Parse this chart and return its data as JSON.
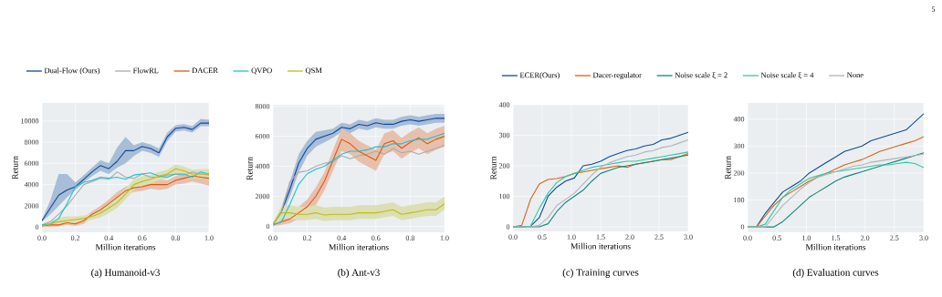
{
  "chart_data": [
    {
      "type": "line",
      "xlabel": "Million iterations",
      "ylabel": "Return",
      "annotations": [
        "(a) Humanoid-v3"
      ],
      "legend": "top",
      "grid": true,
      "xlim": [
        0,
        1
      ],
      "ylim": [
        -500,
        11700
      ],
      "xticks": [
        {
          "value": 0,
          "label": "0.0"
        },
        {
          "value": 0.2,
          "label": "0.2"
        },
        {
          "value": 0.4,
          "label": "0.4"
        },
        {
          "value": 0.6,
          "label": "0.6"
        },
        {
          "value": 0.8,
          "label": "0.8"
        },
        {
          "value": 1,
          "label": "1.0"
        }
      ],
      "yticks": [
        0,
        2000,
        4000,
        6000,
        8000,
        10000
      ],
      "x": [
        0,
        0.05,
        0.1,
        0.15,
        0.2,
        0.25,
        0.3,
        0.35,
        0.4,
        0.45,
        0.5,
        0.55,
        0.6,
        0.65,
        0.7,
        0.75,
        0.8,
        0.85,
        0.9,
        0.95,
        1.0
      ],
      "series": [
        {
          "name": "Dual-Flow (Ours)",
          "color": "#0d4a9c",
          "values": [
            600,
            1800,
            3000,
            3500,
            3800,
            4500,
            5200,
            5800,
            5500,
            6200,
            7200,
            7200,
            7600,
            7400,
            7000,
            8500,
            9300,
            9400,
            9200,
            9800,
            9800
          ],
          "lower": [
            500,
            1200,
            2000,
            2800,
            3500,
            4200,
            4800,
            5300,
            5000,
            5600,
            6000,
            6700,
            7200,
            7000,
            6600,
            8100,
            9000,
            9100,
            8900,
            9500,
            9500
          ],
          "upper": [
            700,
            2500,
            5000,
            5000,
            4200,
            4900,
            5600,
            6300,
            6000,
            7500,
            8500,
            7700,
            8000,
            7800,
            7400,
            8900,
            9600,
            9700,
            9500,
            10200,
            10100
          ]
        },
        {
          "name": "FlowRL",
          "color": "#aaaaaa",
          "values": [
            200,
            500,
            1200,
            2000,
            3000,
            4000,
            4300,
            4600,
            4500,
            5200,
            4700,
            4600,
            5000,
            4700,
            4700,
            4900,
            5000,
            4900,
            5200,
            5000,
            4900
          ]
        },
        {
          "name": "DACER",
          "color": "#e1550e",
          "values": [
            100,
            200,
            200,
            400,
            300,
            600,
            1200,
            1600,
            2200,
            2800,
            3400,
            3700,
            3800,
            4000,
            4000,
            4000,
            4400,
            4600,
            4800,
            4700,
            4600
          ],
          "lower": [
            0,
            0,
            50,
            200,
            100,
            300,
            900,
            1200,
            1800,
            2300,
            3000,
            3300,
            3400,
            3600,
            3500,
            3600,
            4000,
            4100,
            4300,
            null,
            3900
          ],
          "upper": [
            200,
            300,
            400,
            600,
            500,
            900,
            1500,
            2000,
            2600,
            3300,
            3800,
            4100,
            4300,
            4400,
            4500,
            4400,
            4800,
            5100,
            5300,
            null,
            5300
          ]
        },
        {
          "name": "QVPO",
          "color": "#1fc0d6",
          "values": [
            200,
            300,
            800,
            2200,
            3800,
            4200,
            4400,
            4700,
            4600,
            4700,
            4500,
            4900,
            5000,
            5100,
            4800,
            4700,
            5000,
            5000,
            4700,
            5200,
            5000
          ]
        },
        {
          "name": "QSM",
          "color": "#bcbc1e",
          "values": [
            100,
            300,
            500,
            600,
            700,
            800,
            1000,
            1300,
            1800,
            2300,
            3100,
            4000,
            4300,
            4500,
            4800,
            5000,
            5500,
            5300,
            5000,
            5000,
            5000
          ],
          "lower": [
            0,
            100,
            200,
            300,
            400,
            500,
            700,
            900,
            1300,
            1800,
            2600,
            3500,
            3900,
            4100,
            4400,
            4600,
            5100,
            4900,
            4600,
            null,
            4600
          ],
          "upper": [
            200,
            500,
            900,
            1000,
            1000,
            1100,
            1300,
            1700,
            2300,
            2800,
            3600,
            4500,
            4800,
            4900,
            5200,
            5400,
            5900,
            5700,
            5400,
            null,
            5500
          ]
        }
      ]
    },
    {
      "type": "line",
      "xlabel": "Million iterations",
      "ylabel": "Return",
      "annotations": [
        "(b) Ant-v3"
      ],
      "grid": true,
      "xlim": [
        0,
        1
      ],
      "ylim": [
        -400,
        8100
      ],
      "xticks": [
        {
          "value": 0,
          "label": "0.0"
        },
        {
          "value": 0.2,
          "label": "0.2"
        },
        {
          "value": 0.4,
          "label": "0.4"
        },
        {
          "value": 0.6,
          "label": "0.6"
        },
        {
          "value": 0.8,
          "label": "0.8"
        },
        {
          "value": 1,
          "label": "1.0"
        }
      ],
      "yticks": [
        0,
        2000,
        4000,
        6000,
        8000
      ],
      "x": [
        0,
        0.05,
        0.1,
        0.15,
        0.2,
        0.25,
        0.3,
        0.35,
        0.4,
        0.45,
        0.5,
        0.55,
        0.6,
        0.65,
        0.7,
        0.75,
        0.8,
        0.85,
        0.9,
        0.95,
        1.0
      ],
      "series": [
        {
          "color": "#0d4a9c",
          "values": [
            100,
            1000,
            2500,
            4200,
            5200,
            5800,
            6000,
            6200,
            6600,
            6500,
            6800,
            6700,
            6900,
            6800,
            6800,
            7000,
            7100,
            7000,
            7100,
            7200,
            7200
          ],
          "lower": [
            0,
            700,
            2000,
            3600,
            4700,
            5300,
            5600,
            5900,
            6300,
            6200,
            6500,
            6400,
            6600,
            6500,
            6500,
            6700,
            6800,
            6700,
            6800,
            6900,
            6900
          ],
          "upper": [
            200,
            1300,
            3000,
            4800,
            5700,
            6300,
            6400,
            6500,
            6900,
            6800,
            7100,
            7000,
            7200,
            7100,
            7100,
            7300,
            7400,
            7300,
            7400,
            7500,
            7500
          ]
        },
        {
          "color": "#aaaaaa",
          "values": [
            100,
            1000,
            3000,
            3600,
            3700,
            4000,
            4200,
            4300,
            4700,
            4500,
            4700,
            4800,
            5000,
            4800,
            5200,
            4900,
            5000,
            4800,
            5000,
            5200,
            5400
          ]
        },
        {
          "color": "#e1550e",
          "values": [
            100,
            300,
            500,
            900,
            1300,
            2000,
            3000,
            4400,
            5800,
            5500,
            5000,
            4700,
            4400,
            5500,
            5700,
            5200,
            5600,
            5900,
            5500,
            5800,
            6000
          ],
          "lower": [
            0,
            100,
            200,
            500,
            800,
            1400,
            2400,
            3700,
            5000,
            4800,
            4300,
            4000,
            3700,
            4800,
            5000,
            4500,
            4900,
            5200,
            4800,
            5100,
            5300
          ],
          "upper": [
            300,
            500,
            800,
            1300,
            1800,
            2600,
            3600,
            5100,
            6500,
            6200,
            5700,
            5400,
            5100,
            6200,
            6400,
            5900,
            6300,
            6600,
            6200,
            6500,
            6700
          ]
        },
        {
          "color": "#1fc0d6",
          "values": [
            100,
            300,
            1500,
            2800,
            3500,
            3800,
            4000,
            4400,
            4800,
            5000,
            5000,
            5100,
            5300,
            5300,
            5500,
            5500,
            5700,
            5800,
            5800,
            6000,
            6200
          ]
        },
        {
          "color": "#bcbc1e",
          "values": [
            100,
            900,
            900,
            800,
            800,
            900,
            750,
            800,
            800,
            800,
            900,
            900,
            900,
            1000,
            1100,
            800,
            900,
            1000,
            1100,
            1100,
            1500
          ],
          "lower": [
            0,
            500,
            500,
            400,
            400,
            500,
            350,
            400,
            400,
            400,
            500,
            500,
            500,
            600,
            700,
            400,
            500,
            600,
            700,
            700,
            1100
          ],
          "upper": [
            200,
            1400,
            1400,
            1300,
            1300,
            1400,
            1250,
            1300,
            1300,
            1300,
            1400,
            1400,
            1400,
            1500,
            1600,
            1300,
            1400,
            1500,
            1600,
            1600,
            2000
          ]
        }
      ]
    },
    {
      "type": "line",
      "xlabel": "Million iterations",
      "ylabel": "Return",
      "annotations": [
        "(c) Training curves"
      ],
      "legend": "top",
      "grid": true,
      "xlim": [
        0,
        3
      ],
      "ylim": [
        -15,
        400
      ],
      "xticks": [
        {
          "value": 0,
          "label": "0.0"
        },
        {
          "value": 0.5,
          "label": "0.5"
        },
        {
          "value": 1,
          "label": "1.0"
        },
        {
          "value": 1.5,
          "label": "1.5"
        },
        {
          "value": 2,
          "label": "2.0"
        },
        {
          "value": 2.5,
          "label": "2.5"
        },
        {
          "value": 3,
          "label": "3.0"
        }
      ],
      "yticks": [
        0,
        100,
        200,
        300,
        400
      ],
      "x": [
        0,
        0.15,
        0.3,
        0.45,
        0.6,
        0.75,
        0.9,
        1.05,
        1.2,
        1.35,
        1.5,
        1.65,
        1.8,
        1.95,
        2.1,
        2.25,
        2.4,
        2.55,
        2.7,
        2.85,
        3.0
      ],
      "series": [
        {
          "name": "ECER(Ours)",
          "color": "#0b4c9b",
          "values": [
            0,
            0,
            2,
            30,
            100,
            130,
            150,
            160,
            200,
            205,
            215,
            230,
            240,
            250,
            255,
            265,
            270,
            285,
            290,
            300,
            310
          ]
        },
        {
          "name": "Dacer-regulator",
          "color": "#e0600f",
          "values": [
            0,
            5,
            90,
            140,
            155,
            158,
            165,
            175,
            180,
            185,
            190,
            195,
            200,
            195,
            205,
            210,
            215,
            220,
            220,
            230,
            240
          ]
        },
        {
          "name": "Noise scale ξ = 2",
          "color": "#12877c",
          "values": [
            0,
            0,
            0,
            0,
            10,
            50,
            80,
            100,
            120,
            150,
            175,
            185,
            195,
            200,
            205,
            210,
            215,
            220,
            225,
            230,
            235
          ]
        },
        {
          "name": "Noise scale ξ = 4",
          "color": "#2ec9a3",
          "values": [
            0,
            0,
            2,
            60,
            110,
            145,
            165,
            175,
            185,
            195,
            200,
            205,
            210,
            215,
            215,
            220,
            225,
            230,
            235,
            240,
            245
          ]
        },
        {
          "name": "None",
          "color": "#b3b3b3",
          "values": [
            0,
            0,
            0,
            5,
            30,
            70,
            90,
            110,
            140,
            170,
            195,
            210,
            220,
            230,
            235,
            245,
            250,
            260,
            265,
            275,
            285
          ]
        }
      ]
    },
    {
      "type": "line",
      "xlabel": "Million iterations",
      "ylabel": "Return",
      "annotations": [
        "(d) Evaluation curves",
        "5"
      ],
      "grid": true,
      "xlim": [
        0,
        3
      ],
      "ylim": [
        -20,
        460
      ],
      "xticks": [
        {
          "value": 0,
          "label": "0.0"
        },
        {
          "value": 0.5,
          "label": "0.5"
        },
        {
          "value": 1,
          "label": "1.0"
        },
        {
          "value": 1.5,
          "label": "1.5"
        },
        {
          "value": 2,
          "label": "2.0"
        },
        {
          "value": 2.5,
          "label": "2.5"
        },
        {
          "value": 3,
          "label": "3.0"
        }
      ],
      "yticks": [
        0,
        100,
        200,
        300,
        400
      ],
      "x": [
        0,
        0.15,
        0.3,
        0.45,
        0.6,
        0.75,
        0.9,
        1.05,
        1.2,
        1.35,
        1.5,
        1.65,
        1.8,
        1.95,
        2.1,
        2.25,
        2.4,
        2.55,
        2.7,
        2.85,
        3.0
      ],
      "series": [
        {
          "color": "#0b4c9b",
          "values": [
            0,
            0,
            50,
            90,
            130,
            150,
            170,
            200,
            220,
            240,
            260,
            280,
            290,
            300,
            320,
            330,
            340,
            350,
            360,
            390,
            420
          ]
        },
        {
          "color": "#e0600f",
          "values": [
            0,
            0,
            40,
            80,
            110,
            130,
            150,
            170,
            185,
            200,
            215,
            230,
            240,
            250,
            265,
            280,
            290,
            300,
            310,
            320,
            335
          ]
        },
        {
          "color": "#12877c",
          "values": [
            0,
            0,
            0,
            0,
            20,
            50,
            80,
            110,
            130,
            150,
            170,
            185,
            195,
            205,
            215,
            225,
            235,
            245,
            255,
            265,
            275
          ]
        },
        {
          "color": "#2ec9a3",
          "values": [
            0,
            0,
            10,
            60,
            110,
            140,
            160,
            180,
            190,
            200,
            205,
            210,
            215,
            220,
            225,
            230,
            230,
            235,
            240,
            235,
            220
          ]
        },
        {
          "color": "#b3b3b3",
          "values": [
            0,
            0,
            0,
            40,
            80,
            110,
            140,
            165,
            185,
            195,
            205,
            215,
            225,
            230,
            240,
            245,
            250,
            255,
            260,
            265,
            270
          ]
        }
      ]
    }
  ]
}
